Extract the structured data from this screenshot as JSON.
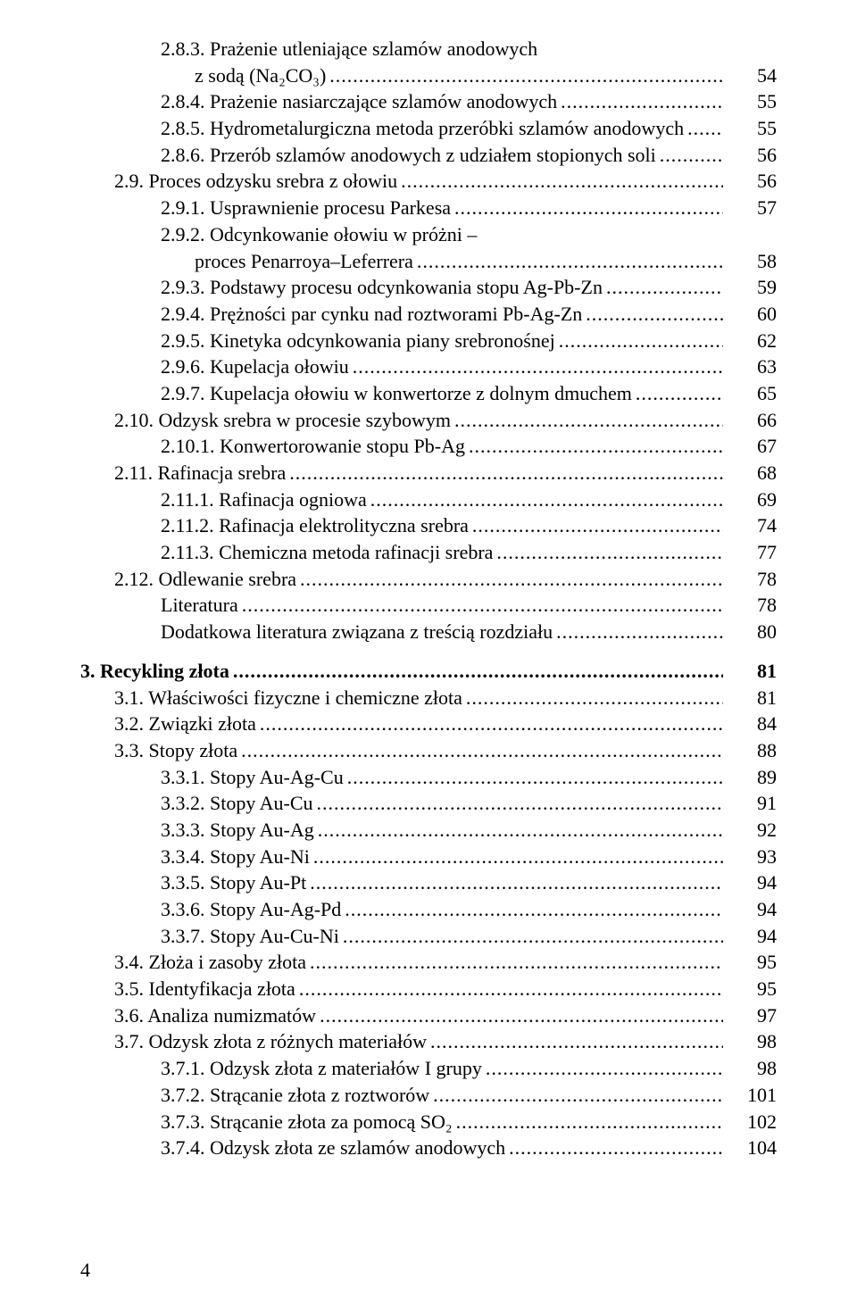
{
  "pageNumber": "4",
  "entries": [
    {
      "indent": 2,
      "text": "2.8.3. Prażenie utleniające szlamów anodowych",
      "pg": null,
      "cont": true,
      "bold": false
    },
    {
      "indent": "2b",
      "text": "z sodą (Na₂CO₃)",
      "pg": "54",
      "cont": false,
      "bold": false
    },
    {
      "indent": 2,
      "text": "2.8.4. Prażenie nasiarczające szlamów anodowych",
      "pg": "55",
      "cont": false,
      "bold": false
    },
    {
      "indent": 2,
      "text": "2.8.5. Hydrometalurgiczna metoda przeróbki szlamów anodowych",
      "pg": "55",
      "cont": false,
      "bold": false
    },
    {
      "indent": 2,
      "text": "2.8.6. Przerób szlamów anodowych z udziałem stopionych soli",
      "pg": "56",
      "cont": false,
      "bold": false
    },
    {
      "indent": 1,
      "text": "2.9. Proces odzysku srebra z ołowiu",
      "pg": "56",
      "cont": false,
      "bold": false
    },
    {
      "indent": 2,
      "text": "2.9.1. Usprawnienie procesu Parkesa",
      "pg": "57",
      "cont": false,
      "bold": false
    },
    {
      "indent": 2,
      "text": "2.9.2. Odcynkowanie ołowiu w próżni –",
      "pg": null,
      "cont": true,
      "bold": false
    },
    {
      "indent": "2b",
      "text": "proces Penarroya–Leferrera",
      "pg": "58",
      "cont": false,
      "bold": false
    },
    {
      "indent": 2,
      "text": "2.9.3. Podstawy procesu odcynkowania stopu Ag-Pb-Zn",
      "pg": "59",
      "cont": false,
      "bold": false
    },
    {
      "indent": 2,
      "text": "2.9.4. Prężności par cynku nad roztworami Pb-Ag-Zn",
      "pg": "60",
      "cont": false,
      "bold": false
    },
    {
      "indent": 2,
      "text": "2.9.5. Kinetyka odcynkowania piany srebronośnej",
      "pg": "62",
      "cont": false,
      "bold": false
    },
    {
      "indent": 2,
      "text": "2.9.6. Kupelacja ołowiu",
      "pg": "63",
      "cont": false,
      "bold": false
    },
    {
      "indent": 2,
      "text": "2.9.7. Kupelacja ołowiu w konwertorze z dolnym dmuchem",
      "pg": "65",
      "cont": false,
      "bold": false
    },
    {
      "indent": 1,
      "text": "2.10. Odzysk srebra w procesie szybowym",
      "pg": "66",
      "cont": false,
      "bold": false
    },
    {
      "indent": 2,
      "text": "2.10.1. Konwertorowanie stopu Pb-Ag",
      "pg": "67",
      "cont": false,
      "bold": false
    },
    {
      "indent": 1,
      "text": "2.11. Rafinacja srebra",
      "pg": "68",
      "cont": false,
      "bold": false
    },
    {
      "indent": 2,
      "text": "2.11.1. Rafinacja ogniowa",
      "pg": "69",
      "cont": false,
      "bold": false
    },
    {
      "indent": 2,
      "text": "2.11.2. Rafinacja elektrolityczna srebra",
      "pg": "74",
      "cont": false,
      "bold": false
    },
    {
      "indent": 2,
      "text": "2.11.3. Chemiczna metoda rafinacji srebra",
      "pg": "77",
      "cont": false,
      "bold": false
    },
    {
      "indent": 1,
      "text": "2.12. Odlewanie srebra",
      "pg": "78",
      "cont": false,
      "bold": false
    },
    {
      "indent": 2,
      "text": "Literatura",
      "pg": "78",
      "cont": false,
      "bold": false
    },
    {
      "indent": 2,
      "text": "Dodatkowa literatura związana z treścią rozdziału",
      "pg": "80",
      "cont": false,
      "bold": false
    },
    {
      "indent": "spacer"
    },
    {
      "indent": 0,
      "text": "3. Recykling złota",
      "pg": "81",
      "cont": false,
      "bold": true
    },
    {
      "indent": 1,
      "text": "3.1. Właściwości fizyczne i chemiczne złota",
      "pg": "81",
      "cont": false,
      "bold": false
    },
    {
      "indent": 1,
      "text": "3.2. Związki złota",
      "pg": "84",
      "cont": false,
      "bold": false
    },
    {
      "indent": 1,
      "text": "3.3. Stopy złota",
      "pg": "88",
      "cont": false,
      "bold": false
    },
    {
      "indent": 2,
      "text": "3.3.1. Stopy Au-Ag-Cu",
      "pg": "89",
      "cont": false,
      "bold": false
    },
    {
      "indent": 2,
      "text": "3.3.2. Stopy Au-Cu",
      "pg": "91",
      "cont": false,
      "bold": false
    },
    {
      "indent": 2,
      "text": "3.3.3. Stopy Au-Ag",
      "pg": "92",
      "cont": false,
      "bold": false
    },
    {
      "indent": 2,
      "text": "3.3.4. Stopy Au-Ni",
      "pg": "93",
      "cont": false,
      "bold": false
    },
    {
      "indent": 2,
      "text": "3.3.5. Stopy Au-Pt",
      "pg": "94",
      "cont": false,
      "bold": false
    },
    {
      "indent": 2,
      "text": "3.3.6. Stopy Au-Ag-Pd",
      "pg": "94",
      "cont": false,
      "bold": false
    },
    {
      "indent": 2,
      "text": "3.3.7. Stopy Au-Cu-Ni",
      "pg": "94",
      "cont": false,
      "bold": false
    },
    {
      "indent": 1,
      "text": "3.4. Złoża i zasoby złota",
      "pg": "95",
      "cont": false,
      "bold": false
    },
    {
      "indent": 1,
      "text": "3.5. Identyfikacja złota",
      "pg": "95",
      "cont": false,
      "bold": false
    },
    {
      "indent": 1,
      "text": "3.6. Analiza numizmatów",
      "pg": "97",
      "cont": false,
      "bold": false
    },
    {
      "indent": 1,
      "text": "3.7. Odzysk złota z różnych materiałów",
      "pg": "98",
      "cont": false,
      "bold": false
    },
    {
      "indent": 2,
      "text": "3.7.1. Odzysk złota z materiałów I grupy",
      "pg": "98",
      "cont": false,
      "bold": false
    },
    {
      "indent": 2,
      "text": "3.7.2. Strącanie złota z roztworów",
      "pg": "101",
      "cont": false,
      "bold": false
    },
    {
      "indent": 2,
      "text": "3.7.3. Strącanie złota za pomocą SO₂",
      "pg": "102",
      "cont": false,
      "bold": false
    },
    {
      "indent": 2,
      "text": "3.7.4. Odzysk złota ze szlamów anodowych",
      "pg": "104",
      "cont": false,
      "bold": false
    }
  ]
}
